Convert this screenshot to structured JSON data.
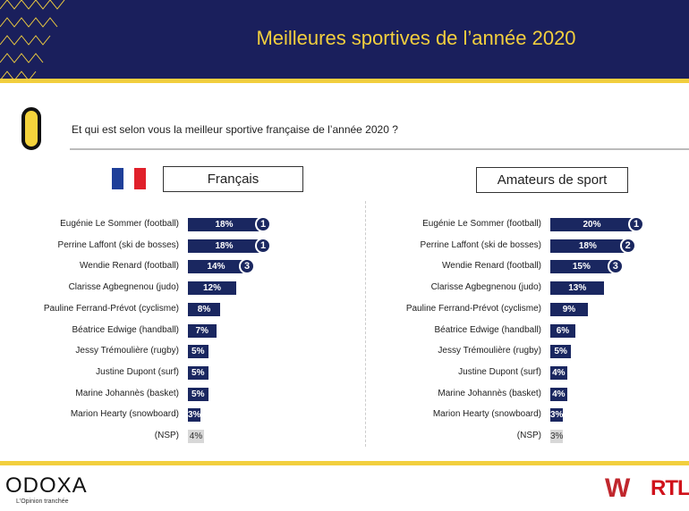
{
  "header": {
    "title": "Meilleures sportives de l’année 2020"
  },
  "question": "Et qui est selon vous la meilleur sportive française de l’année 2020 ?",
  "colors": {
    "navy": "#1a1f5c",
    "bar": "#1a2760",
    "yellow": "#f2cf3e",
    "nsp": "#d8d8d8"
  },
  "footer": {
    "brand": "ODOXA",
    "tagline": "L'Opinion tranchée",
    "partner1": "WINAMAX",
    "partner2": "RTL"
  },
  "chart_data": [
    {
      "type": "bar",
      "title": "Français",
      "unit": "%",
      "categories": [
        "Eugénie Le Sommer (football)",
        "Perrine Laffont (ski de bosses)",
        "Wendie Renard (football)",
        "Clarisse Agbegnenou (judo)",
        "Pauline Ferrand-Prévot (cyclisme)",
        "Béatrice Edwige (handball)",
        "Jessy Trémoulière (rugby)",
        "Justine Dupont (surf)",
        "Marine Johannès (basket)",
        "Marion Hearty (snowboard)",
        "(NSP)"
      ],
      "values": [
        18,
        18,
        14,
        12,
        8,
        7,
        5,
        5,
        5,
        3,
        4
      ],
      "ranks": [
        "1",
        "1",
        "3",
        "",
        "",
        "",
        "",
        "",
        "",
        "",
        ""
      ]
    },
    {
      "type": "bar",
      "title": "Amateurs de sport",
      "unit": "%",
      "categories": [
        "Eugénie Le Sommer (football)",
        "Perrine Laffont (ski de bosses)",
        "Wendie Renard (football)",
        "Clarisse Agbegnenou (judo)",
        "Pauline Ferrand-Prévot (cyclisme)",
        "Béatrice Edwige (handball)",
        "Jessy Trémoulière (rugby)",
        "Justine Dupont (surf)",
        "Marine Johannès (basket)",
        "Marion Hearty (snowboard)",
        "(NSP)"
      ],
      "values": [
        20,
        18,
        15,
        13,
        9,
        6,
        5,
        4,
        4,
        3,
        3
      ],
      "ranks": [
        "1",
        "2",
        "3",
        "",
        "",
        "",
        "",
        "",
        "",
        "",
        ""
      ]
    }
  ]
}
